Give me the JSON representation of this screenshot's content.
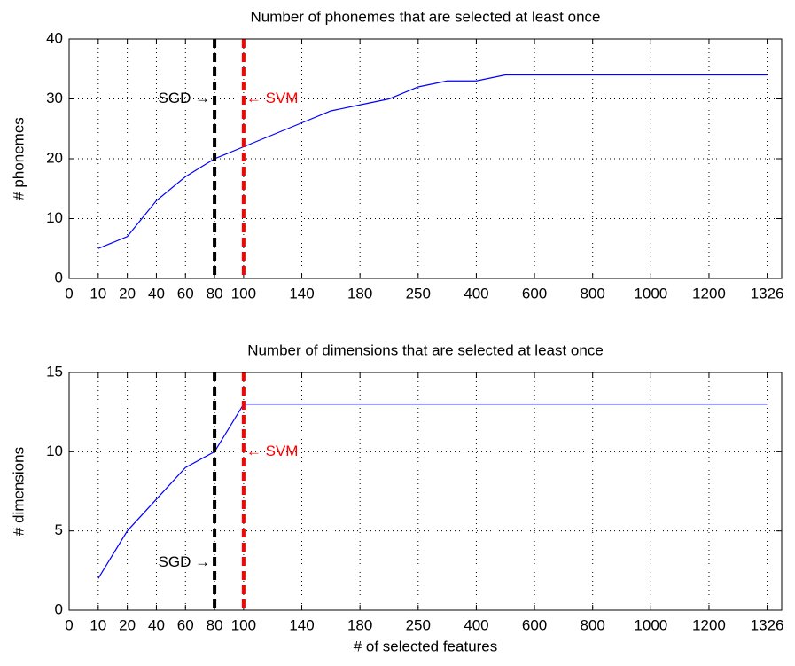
{
  "chart_data": [
    {
      "type": "line",
      "title": "Number of phonemes that are selected at least once",
      "ylabel": "# phonemes",
      "x": [
        1,
        2,
        3,
        4,
        5,
        6,
        7,
        8,
        9,
        10,
        11,
        12,
        13,
        14,
        15,
        16,
        17,
        18,
        19,
        20,
        21,
        22,
        23,
        24
      ],
      "values": [
        5,
        7,
        13,
        17,
        20,
        22,
        24,
        26,
        28,
        29,
        30,
        32,
        33,
        33,
        34,
        34,
        34,
        34,
        34,
        34,
        34,
        34,
        34,
        34
      ],
      "color": "#0000ff",
      "xlim": [
        0,
        24.5
      ],
      "ylim": [
        0,
        40
      ],
      "yticks": [
        0,
        10,
        20,
        30,
        40
      ],
      "xticks": [
        0,
        {
          "value": 1,
          "label": "10"
        },
        {
          "value": 2,
          "label": "20"
        },
        {
          "value": 3,
          "label": "40"
        },
        {
          "value": 4,
          "label": "60"
        },
        {
          "value": 5,
          "label": "80"
        },
        {
          "value": 6,
          "label": "100"
        },
        {
          "value": 8,
          "label": "140"
        },
        {
          "value": 10,
          "label": "180"
        },
        {
          "value": 12,
          "label": "250"
        },
        {
          "value": 14,
          "label": "400"
        },
        {
          "value": 16,
          "label": "600"
        },
        {
          "value": 18,
          "label": "800"
        },
        {
          "value": 20,
          "label": "1000"
        },
        {
          "value": 22,
          "label": "1200"
        },
        {
          "value": 24,
          "label": "1326"
        }
      ],
      "grid": true,
      "vlines": [
        {
          "x": 5,
          "color": "#000000"
        },
        {
          "x": 6,
          "color": "#ff0000"
        }
      ],
      "annotations": [
        {
          "text": "SGD →",
          "x": 5,
          "y": 30,
          "ha": "right",
          "color": "#000000"
        },
        {
          "text": "← SVM",
          "x": 6,
          "y": 30,
          "ha": "left",
          "color": "#ff0000"
        }
      ]
    },
    {
      "type": "line",
      "title": "Number of dimensions that are selected at least once",
      "ylabel": "# dimensions",
      "xlabel": "# of selected features",
      "x": [
        1,
        2,
        3,
        4,
        5,
        6,
        7,
        8,
        9,
        10,
        11,
        12,
        13,
        14,
        15,
        16,
        17,
        18,
        19,
        20,
        21,
        22,
        23,
        24
      ],
      "values": [
        2,
        5,
        7,
        9,
        10,
        13,
        13,
        13,
        13,
        13,
        13,
        13,
        13,
        13,
        13,
        13,
        13,
        13,
        13,
        13,
        13,
        13,
        13,
        13
      ],
      "color": "#0000ff",
      "xlim": [
        0,
        24.5
      ],
      "ylim": [
        0,
        15
      ],
      "yticks": [
        0,
        5,
        10,
        15
      ],
      "xticks": [
        0,
        {
          "value": 1,
          "label": "10"
        },
        {
          "value": 2,
          "label": "20"
        },
        {
          "value": 3,
          "label": "40"
        },
        {
          "value": 4,
          "label": "60"
        },
        {
          "value": 5,
          "label": "80"
        },
        {
          "value": 6,
          "label": "100"
        },
        {
          "value": 8,
          "label": "140"
        },
        {
          "value": 10,
          "label": "180"
        },
        {
          "value": 12,
          "label": "250"
        },
        {
          "value": 14,
          "label": "400"
        },
        {
          "value": 16,
          "label": "600"
        },
        {
          "value": 18,
          "label": "800"
        },
        {
          "value": 20,
          "label": "1000"
        },
        {
          "value": 22,
          "label": "1200"
        },
        {
          "value": 24,
          "label": "1326"
        }
      ],
      "grid": true,
      "vlines": [
        {
          "x": 5,
          "color": "#000000"
        },
        {
          "x": 6,
          "color": "#ff0000"
        }
      ],
      "annotations": [
        {
          "text": "← SVM",
          "x": 6,
          "y": 10,
          "ha": "left",
          "color": "#ff0000"
        },
        {
          "text": "SGD →",
          "x": 5,
          "y": 3,
          "ha": "right",
          "color": "#000000"
        }
      ]
    }
  ]
}
